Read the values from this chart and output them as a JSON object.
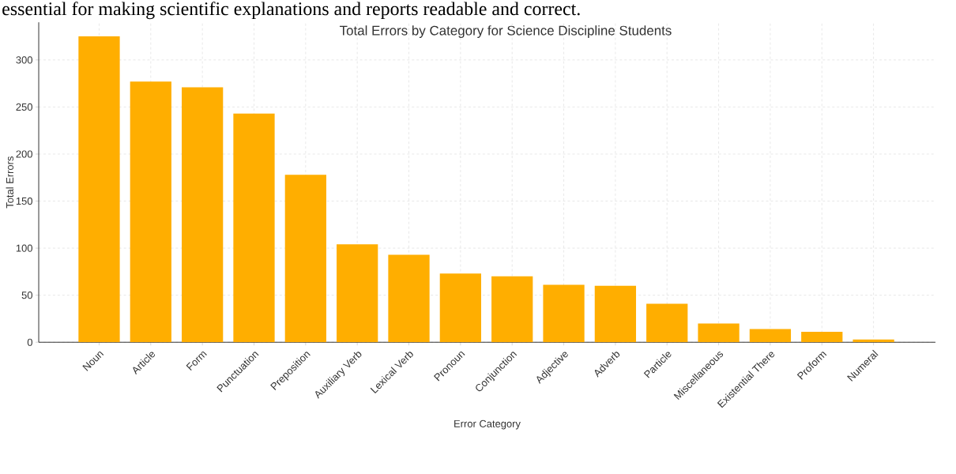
{
  "chart_data": {
    "type": "bar",
    "title": "Total Errors by Category for Science Discipline Students",
    "annotations": [
      "essential for making scientific explanations and reports readable and correct."
    ],
    "xlabel": "Error Category",
    "ylabel": "Total Errors",
    "categories": [
      "Noun",
      "Article",
      "Form",
      "Punctuation",
      "Preposition",
      "Auxiliary Verb",
      "Lexical Verb",
      "Pronoun",
      "Conjunction",
      "Adjective",
      "Adverb",
      "Particle",
      "Miscellaneous",
      "Existential There",
      "Proform",
      "Numeral"
    ],
    "values": [
      325,
      277,
      271,
      243,
      178,
      104,
      93,
      73,
      70,
      61,
      60,
      41,
      20,
      14,
      11,
      3
    ],
    "color": "#ffae00",
    "ylim": [
      0,
      340
    ],
    "yticks": [
      0,
      50,
      100,
      150,
      200,
      250,
      300
    ],
    "grid": true
  }
}
